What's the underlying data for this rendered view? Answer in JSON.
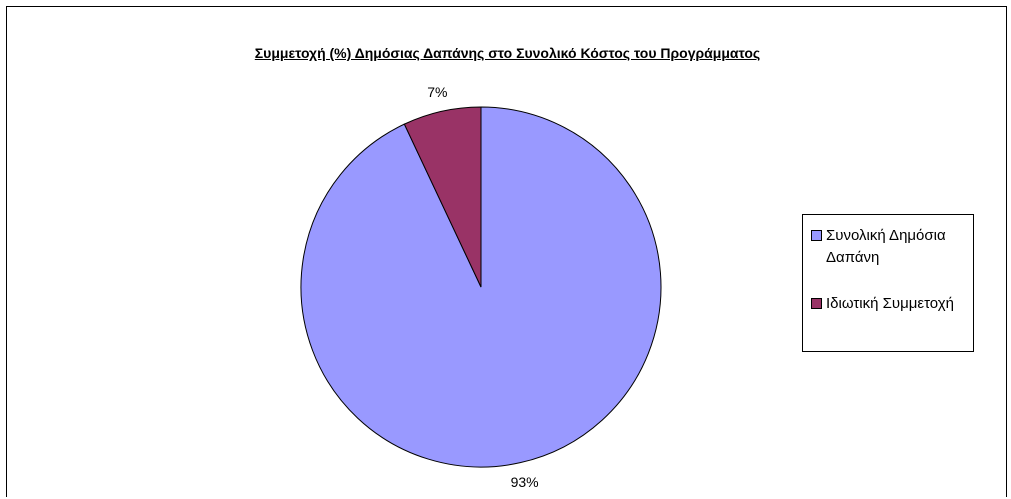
{
  "chart_data": {
    "type": "pie",
    "title": "Συμμετοχή (%) Δημόσιας Δαπάνης στο Συνολικό Κόστος του Προγράμματος",
    "slices": [
      {
        "name": "Συνολική Δημόσια Δαπάνη",
        "value": 93,
        "label": "93%",
        "color": "#9999FF"
      },
      {
        "name": "Ιδιωτική Συμμετοχή",
        "value": 7,
        "label": "7%",
        "color": "#993366"
      }
    ],
    "legend_placement": "right"
  }
}
